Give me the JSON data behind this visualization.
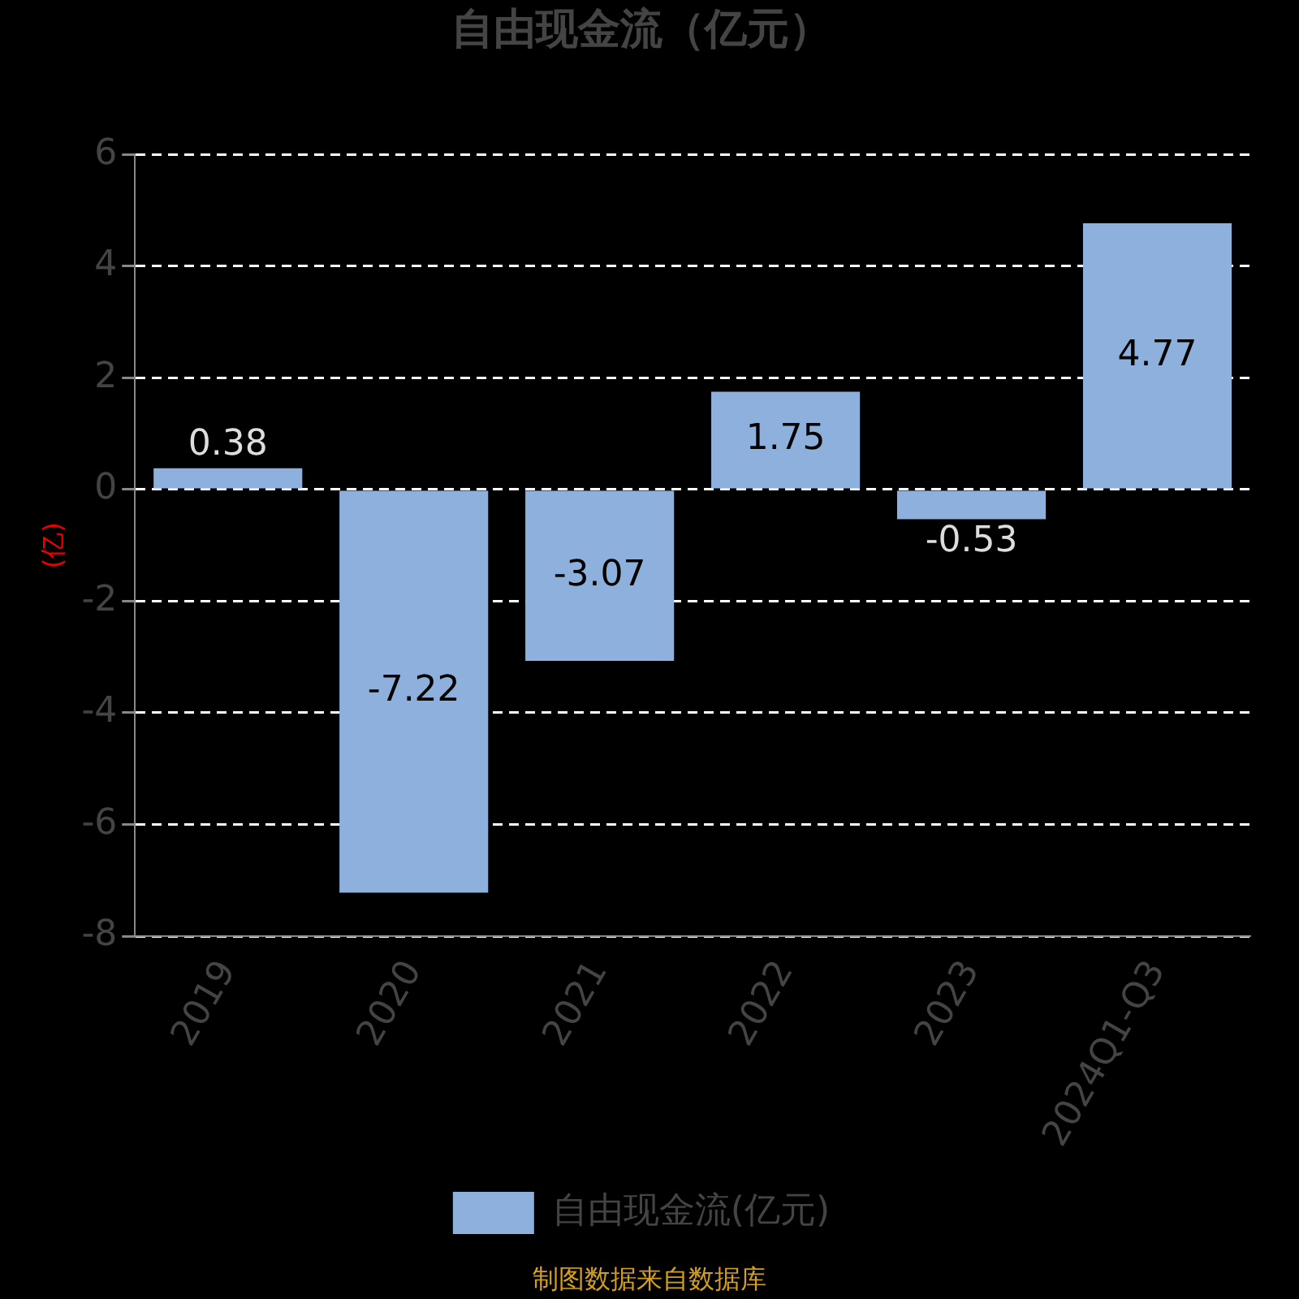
{
  "chart_data": {
    "type": "bar",
    "title": "自由现金流（亿元）",
    "ylabel": "(亿)",
    "categories": [
      "2019",
      "2020",
      "2021",
      "2022",
      "2023",
      "2024Q1-Q3"
    ],
    "series": [
      {
        "name": "自由现金流(亿元)",
        "color": "#8eb0dc",
        "values": [
          0.38,
          -7.22,
          -3.07,
          1.75,
          -0.53,
          4.77
        ]
      }
    ],
    "ylim": [
      -8,
      6
    ],
    "yticks": [
      -8,
      -6,
      -4,
      -2,
      0,
      2,
      4,
      6
    ],
    "grid": "y",
    "legend": "bottom",
    "data_labels": true,
    "annotations": [
      "制图数据来自数据库"
    ]
  }
}
